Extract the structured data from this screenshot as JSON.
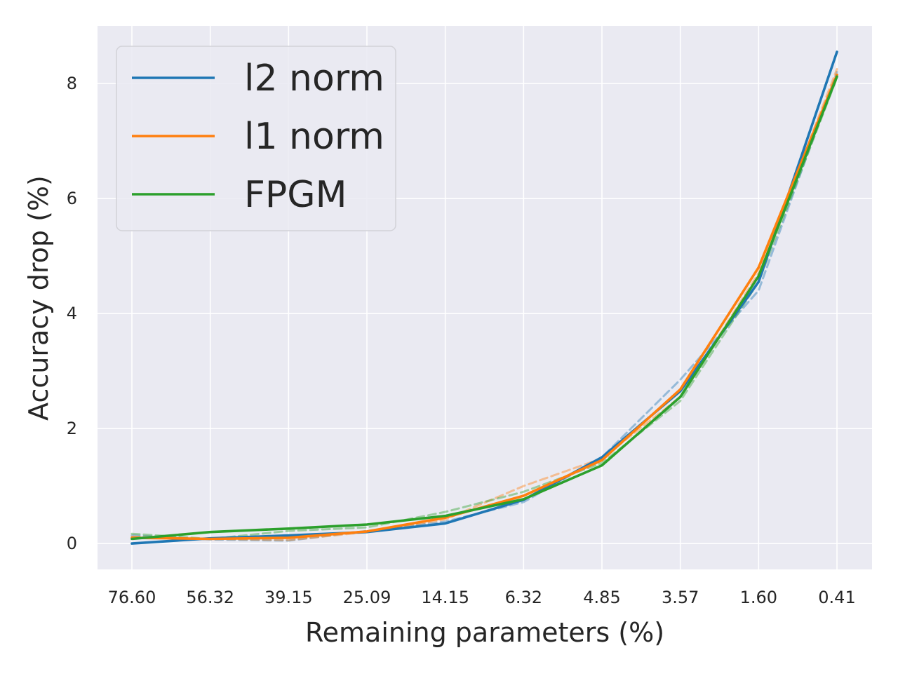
{
  "chart_data": {
    "type": "line",
    "title": "",
    "xlabel": "Remaining parameters (%)",
    "ylabel": "Accuracy drop (%)",
    "categories": [
      "76.60",
      "56.32",
      "39.15",
      "25.09",
      "14.15",
      "6.32",
      "4.85",
      "3.57",
      "1.60",
      "0.41"
    ],
    "ylim": [
      -0.45,
      9.0
    ],
    "yticks": [
      0,
      2,
      4,
      6,
      8
    ],
    "ytick_labels": [
      "0",
      "2",
      "4",
      "6",
      "8"
    ],
    "grid": true,
    "legend_position": "top-left",
    "series": [
      {
        "name": "l2 norm",
        "color": "#1f77b4",
        "style": "solid",
        "values": [
          0.0,
          0.09,
          0.14,
          0.2,
          0.35,
          0.76,
          1.5,
          2.65,
          4.55,
          8.55
        ]
      },
      {
        "name": "l1 norm",
        "color": "#ff7f0e",
        "style": "solid",
        "values": [
          0.1,
          0.08,
          0.1,
          0.21,
          0.45,
          0.83,
          1.45,
          2.68,
          4.8,
          8.15
        ]
      },
      {
        "name": "FPGM",
        "color": "#2ca02c",
        "style": "solid",
        "values": [
          0.08,
          0.2,
          0.26,
          0.33,
          0.48,
          0.77,
          1.36,
          2.55,
          4.65,
          8.12
        ]
      },
      {
        "name": "",
        "color": "#1f77b4",
        "style": "dashed",
        "values": [
          0.14,
          0.07,
          0.05,
          0.22,
          0.38,
          0.72,
          1.5,
          2.85,
          4.4,
          8.2
        ]
      },
      {
        "name": "",
        "color": "#ff7f0e",
        "style": "dashed",
        "values": [
          0.12,
          0.08,
          0.06,
          0.2,
          0.42,
          1.0,
          1.48,
          2.55,
          4.7,
          8.25
        ]
      },
      {
        "name": "",
        "color": "#2ca02c",
        "style": "dashed",
        "values": [
          0.17,
          0.08,
          0.22,
          0.28,
          0.55,
          0.9,
          1.4,
          2.48,
          4.55,
          8.1
        ]
      }
    ]
  }
}
